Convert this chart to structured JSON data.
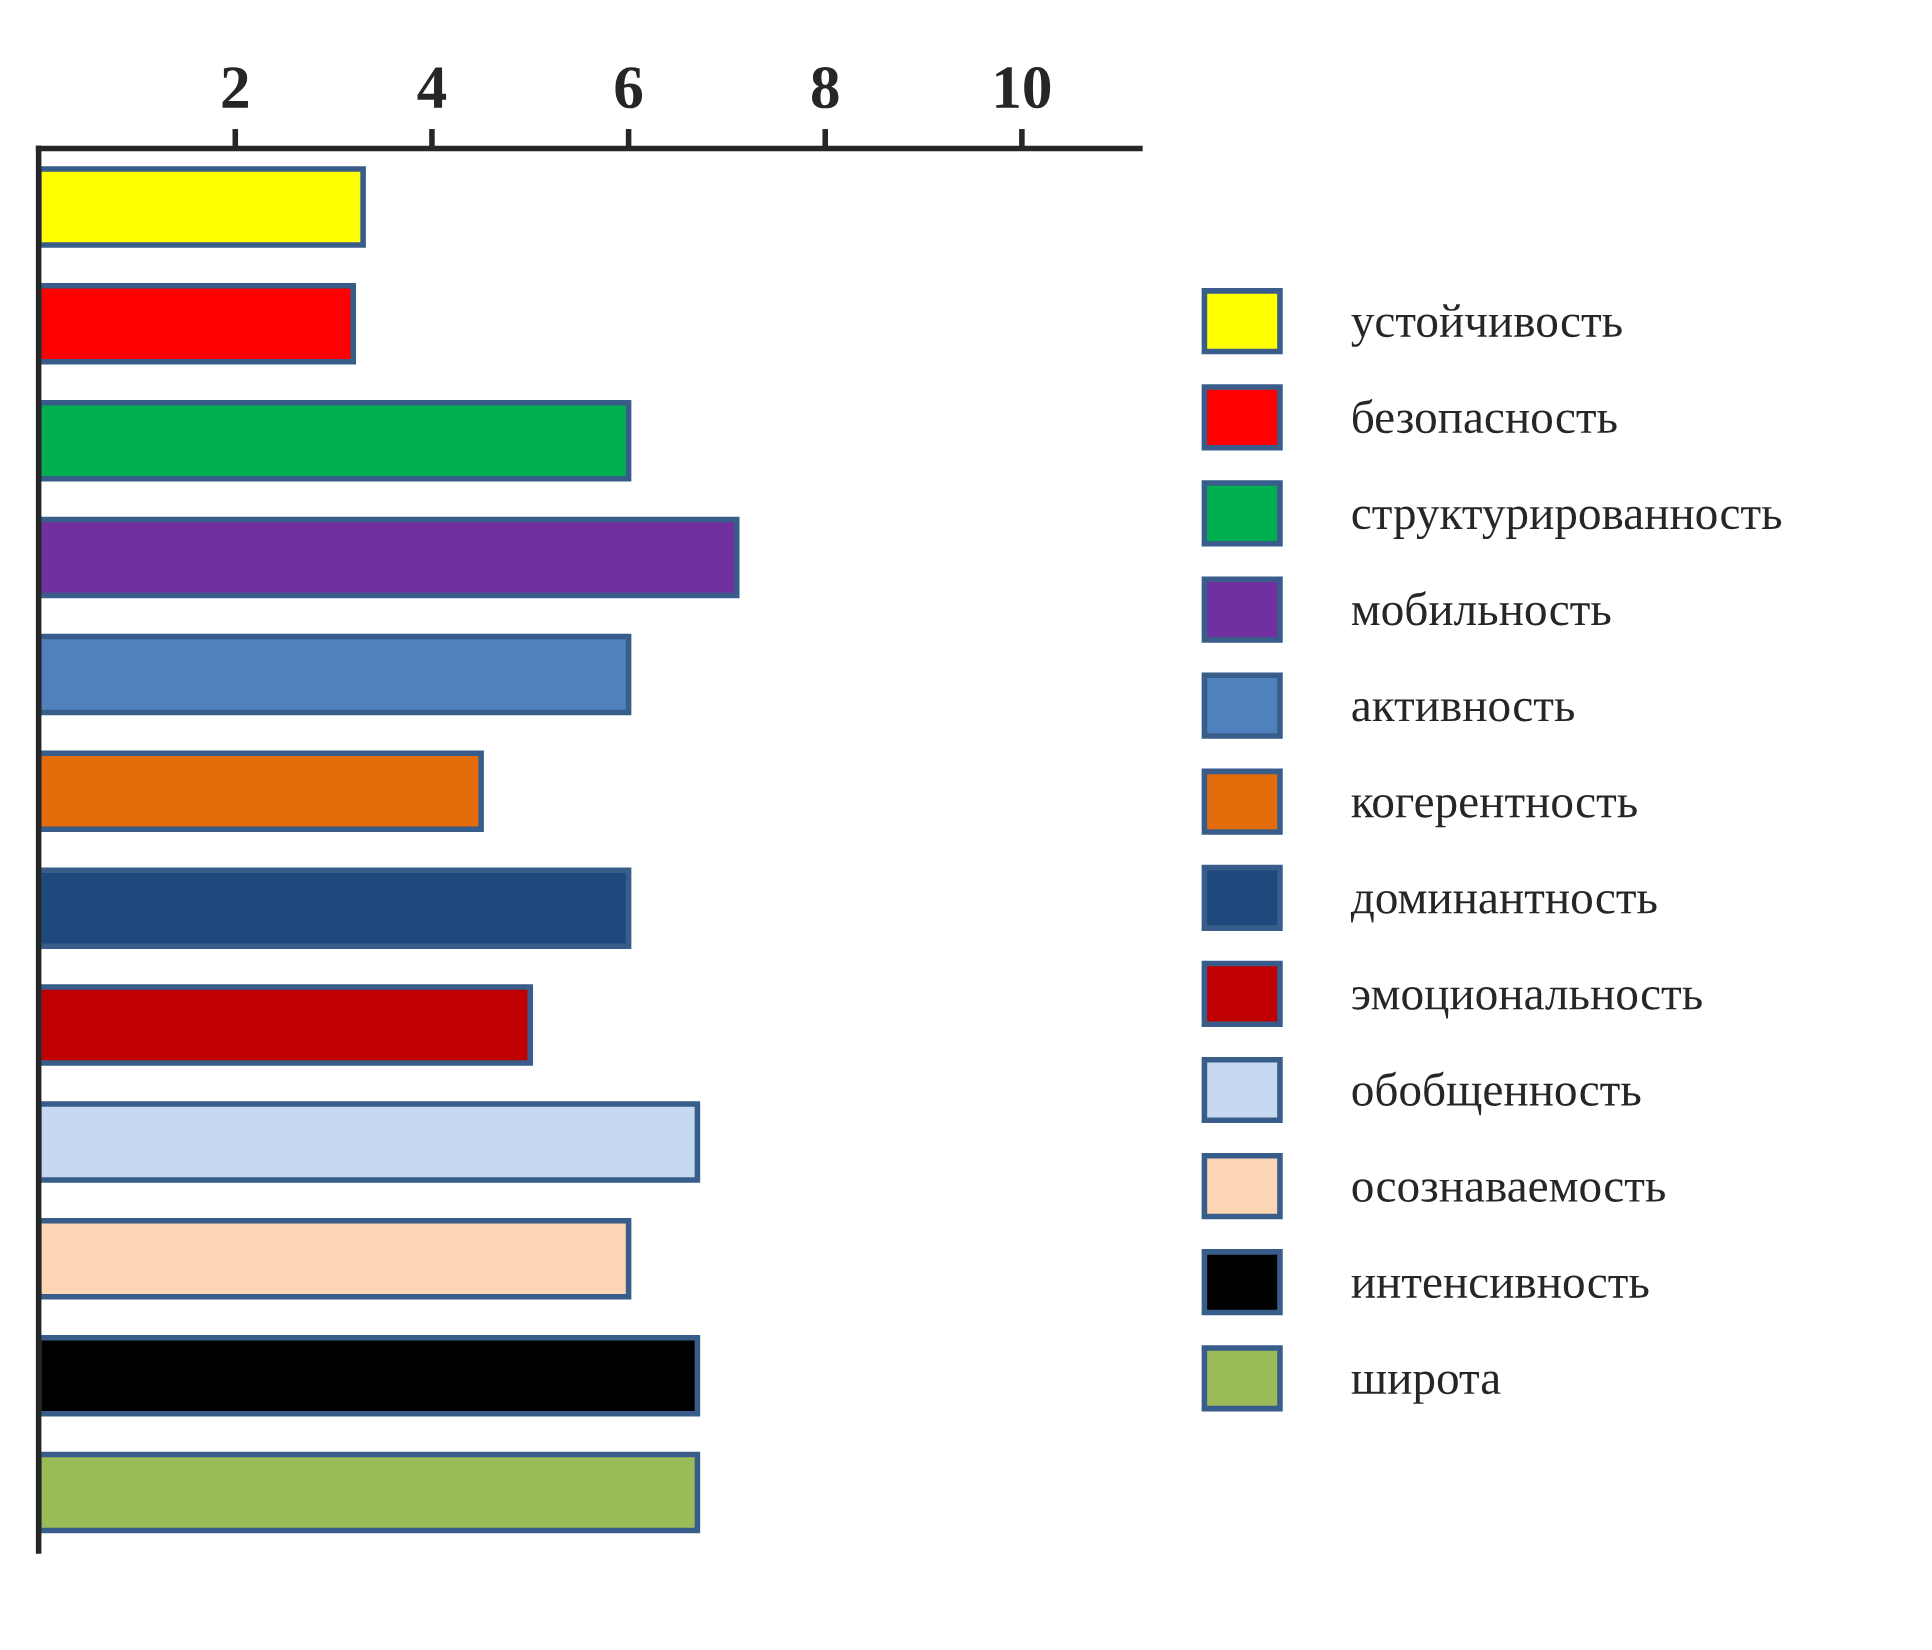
{
  "chart_data": {
    "type": "bar",
    "orientation": "horizontal",
    "categories": [
      null,
      null,
      null,
      null,
      null,
      null,
      null,
      null,
      null,
      null,
      null,
      null
    ],
    "series": [
      {
        "name": "устойчивость",
        "color": "#ffff00",
        "values": [
          3.3,
          null,
          null,
          null,
          null,
          null,
          null,
          null,
          null,
          null,
          null,
          null
        ]
      },
      {
        "name": "безопасность",
        "color": "#ff0000",
        "values": [
          null,
          3.2,
          null,
          null,
          null,
          null,
          null,
          null,
          null,
          null,
          null,
          null
        ]
      },
      {
        "name": "структурированность",
        "color": "#00b050",
        "values": [
          null,
          null,
          6.0,
          null,
          null,
          null,
          null,
          null,
          null,
          null,
          null,
          null
        ]
      },
      {
        "name": "мобильность",
        "color": "#7030a0",
        "values": [
          null,
          null,
          null,
          7.1,
          null,
          null,
          null,
          null,
          null,
          null,
          null,
          null
        ]
      },
      {
        "name": "активность",
        "color": "#4f81bd",
        "values": [
          null,
          null,
          null,
          null,
          6.0,
          null,
          null,
          null,
          null,
          null,
          null,
          null
        ]
      },
      {
        "name": "когерентность",
        "color": "#e46c0a",
        "values": [
          null,
          null,
          null,
          null,
          null,
          4.5,
          null,
          null,
          null,
          null,
          null,
          null
        ]
      },
      {
        "name": "доминантность",
        "color": "#1f497d",
        "values": [
          null,
          null,
          null,
          null,
          null,
          null,
          6.0,
          null,
          null,
          null,
          null,
          null
        ]
      },
      {
        "name": "эмоциональность",
        "color": "#c00000",
        "values": [
          null,
          null,
          null,
          null,
          null,
          null,
          null,
          5.0,
          null,
          null,
          null,
          null
        ]
      },
      {
        "name": "обобщенность",
        "color": "#c6d9f1",
        "values": [
          null,
          null,
          null,
          null,
          null,
          null,
          null,
          null,
          6.7,
          null,
          null,
          null
        ]
      },
      {
        "name": "осознаваемость",
        "color": "#fcd5b5",
        "values": [
          null,
          null,
          null,
          null,
          null,
          null,
          null,
          null,
          null,
          6.0,
          null,
          null
        ]
      },
      {
        "name": "интенсивность",
        "color": "#000000",
        "values": [
          null,
          null,
          null,
          null,
          null,
          null,
          null,
          null,
          null,
          null,
          6.7,
          null
        ]
      },
      {
        "name": "широта",
        "color": "#9bbb59",
        "values": [
          null,
          null,
          null,
          null,
          null,
          null,
          null,
          null,
          null,
          null,
          null,
          6.7
        ]
      }
    ],
    "xlim": [
      0,
      11.2
    ],
    "xticks": [
      2,
      4,
      6,
      8,
      10
    ],
    "grid": false,
    "legend": "right"
  }
}
